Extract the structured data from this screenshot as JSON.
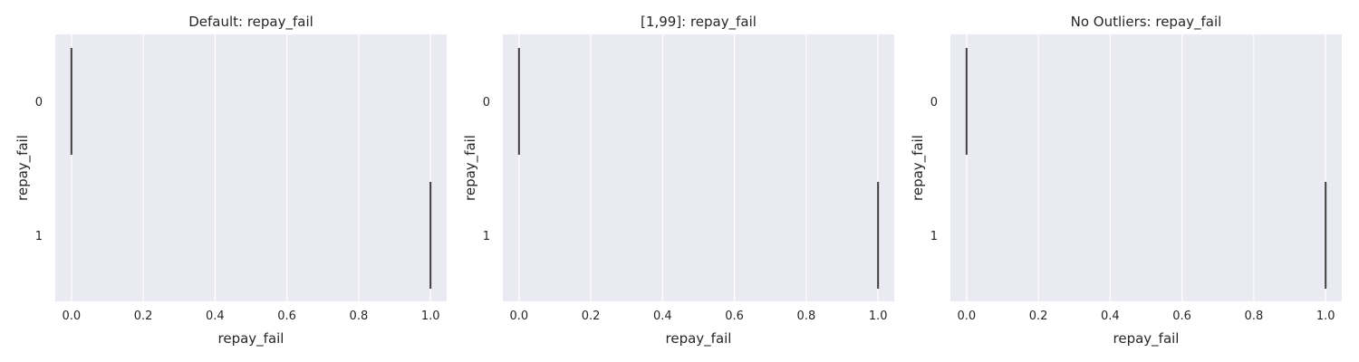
{
  "chart_data": [
    {
      "type": "box",
      "orientation": "horizontal",
      "title": "Default: repay_fail",
      "xlabel": "repay_fail",
      "ylabel": "repay_fail",
      "categories": [
        "0",
        "1"
      ],
      "values": [
        0,
        1
      ],
      "xlim": [
        -0.045,
        1.045
      ],
      "xticks": [
        "0.0",
        "0.2",
        "0.4",
        "0.6",
        "0.8",
        "1.0"
      ],
      "grid": true,
      "background": "#eaeaf2",
      "line_color": "#3f3f3f"
    },
    {
      "type": "box",
      "orientation": "horizontal",
      "title": "[1,99]: repay_fail",
      "xlabel": "repay_fail",
      "ylabel": "repay_fail",
      "categories": [
        "0",
        "1"
      ],
      "values": [
        0,
        1
      ],
      "xlim": [
        -0.045,
        1.045
      ],
      "xticks": [
        "0.0",
        "0.2",
        "0.4",
        "0.6",
        "0.8",
        "1.0"
      ],
      "grid": true,
      "background": "#eaeaf2",
      "line_color": "#3f3f3f"
    },
    {
      "type": "box",
      "orientation": "horizontal",
      "title": "No Outliers: repay_fail",
      "xlabel": "repay_fail",
      "ylabel": "repay_fail",
      "categories": [
        "0",
        "1"
      ],
      "values": [
        0,
        1
      ],
      "xlim": [
        -0.045,
        1.045
      ],
      "xticks": [
        "0.0",
        "0.2",
        "0.4",
        "0.6",
        "0.8",
        "1.0"
      ],
      "grid": true,
      "background": "#eaeaf2",
      "line_color": "#3f3f3f"
    }
  ]
}
